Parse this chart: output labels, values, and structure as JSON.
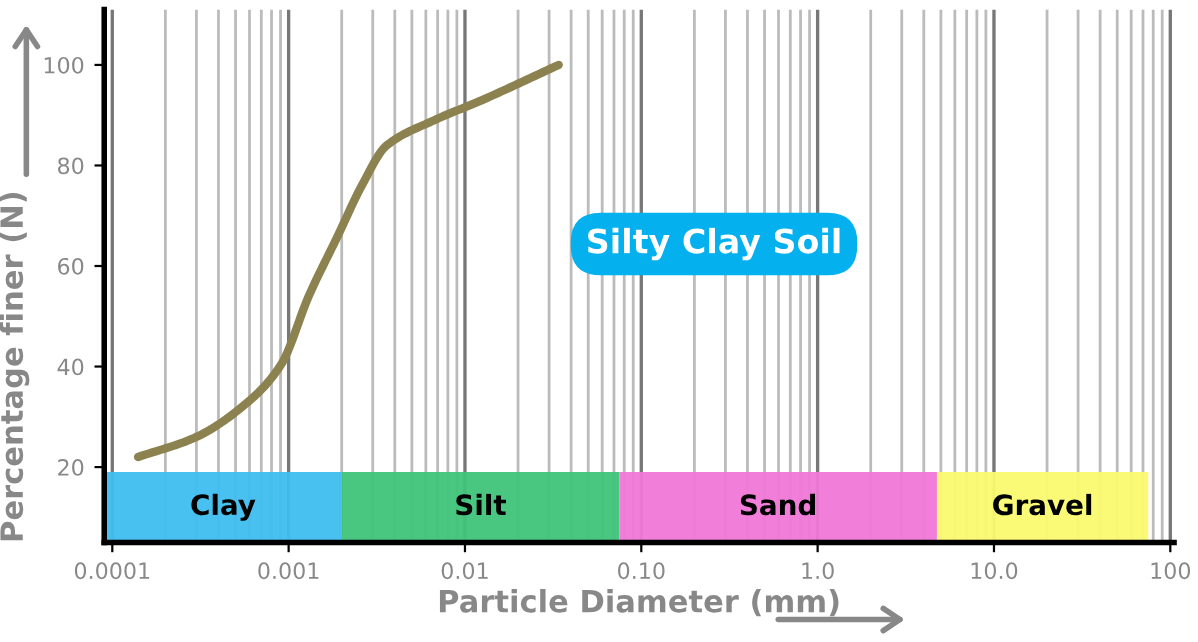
{
  "chart_data": {
    "type": "line",
    "xlabel": "Particle Diameter (mm)",
    "ylabel": "Percentage finer (N)",
    "annotations": [
      "Silty Clay Soil"
    ],
    "log": "x",
    "grid": "x",
    "legend": false,
    "marker": "none",
    "line_style": "solid",
    "xlim": [
      9e-05,
      105
    ],
    "ylim": [
      5,
      111
    ],
    "xticks": [
      {
        "value": 0.0001,
        "label": "0.0001"
      },
      {
        "value": 0.001,
        "label": "0.001"
      },
      {
        "value": 0.01,
        "label": "0.01"
      },
      {
        "value": 0.1,
        "label": "0.10"
      },
      {
        "value": 1,
        "label": "1.0"
      },
      {
        "value": 10,
        "label": "10.0"
      },
      {
        "value": 100,
        "label": "100"
      }
    ],
    "yticks": [
      20,
      40,
      60,
      80,
      100
    ],
    "series": [
      {
        "color": "#8b8250",
        "x": [
          0.00014,
          0.0003,
          0.00059,
          0.00091,
          0.0013,
          0.0019,
          0.0026,
          0.0036,
          0.0067,
          0.0125,
          0.034
        ],
        "values": [
          22,
          26,
          33,
          40.5,
          54,
          66,
          76,
          84,
          89,
          93,
          100
        ]
      }
    ],
    "bands": [
      {
        "axis": "x",
        "from": 9e-05,
        "to": 0.002,
        "label": "Clay",
        "color": "#3ebef0"
      },
      {
        "axis": "x",
        "from": 0.002,
        "to": 0.075,
        "label": "Silt",
        "color": "#3fc47a"
      },
      {
        "axis": "x",
        "from": 0.075,
        "to": 4.75,
        "label": "Sand",
        "color": "#f078d8"
      },
      {
        "axis": "x",
        "from": 4.75,
        "to": 75,
        "label": "Gravel",
        "color": "#fafa70"
      }
    ]
  }
}
